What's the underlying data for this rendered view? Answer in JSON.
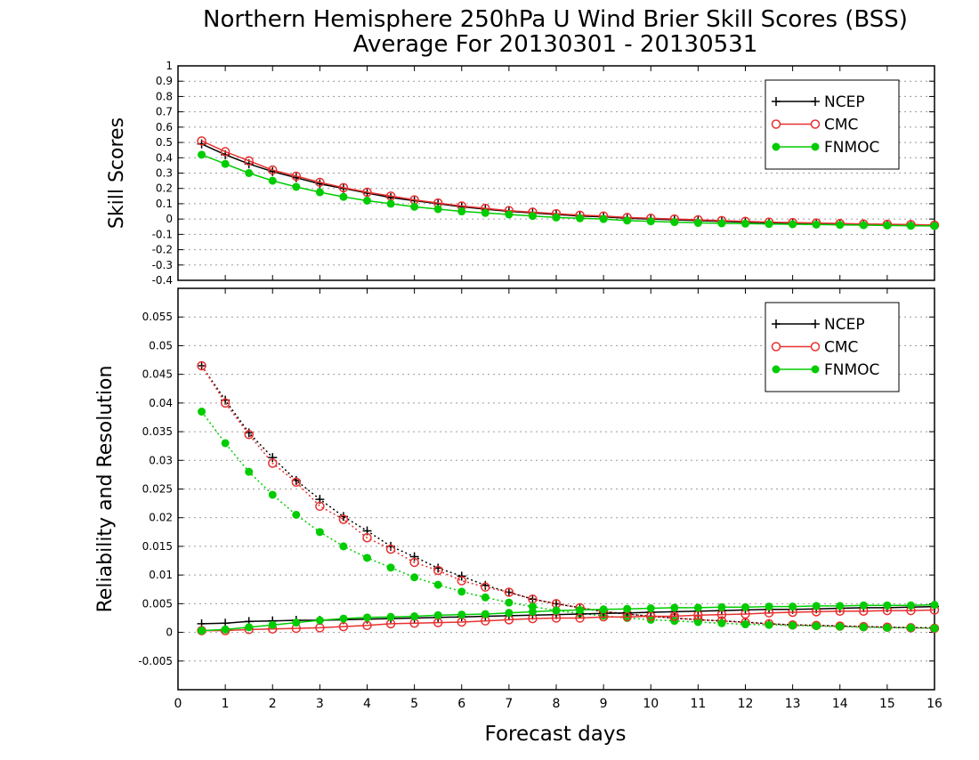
{
  "title": "Northern Hemisphere 250hPa U Wind Brier Skill Scores (BSS)",
  "subtitle": "Average For 20130301 - 20130531",
  "xlabel": "Forecast days",
  "colors": {
    "NCEP": "#000000",
    "CMC": "#e83030",
    "FNMOC": "#00cc00"
  },
  "chart_data": [
    {
      "type": "line",
      "panel": "top",
      "ylabel": "Skill Scores",
      "xlim": [
        0,
        16
      ],
      "ylim": [
        -0.4,
        1
      ],
      "x_ticks": [
        "0",
        "1",
        "2",
        "3",
        "4",
        "5",
        "6",
        "7",
        "8",
        "9",
        "10",
        "11",
        "12",
        "13",
        "14",
        "15",
        "16"
      ],
      "y_ticks": [
        "-0.4",
        "-0.3",
        "-0.2",
        "-0.1",
        "0",
        "0.1",
        "0.2",
        "0.3",
        "0.4",
        "0.5",
        "0.6",
        "0.7",
        "0.8",
        "0.9",
        "1"
      ],
      "grid": true,
      "legend": "top-right",
      "x": [
        0.5,
        1,
        1.5,
        2,
        2.5,
        3,
        3.5,
        4,
        4.5,
        5,
        5.5,
        6,
        6.5,
        7,
        7.5,
        8,
        8.5,
        9,
        9.5,
        10,
        10.5,
        11,
        11.5,
        12,
        12.5,
        13,
        13.5,
        14,
        14.5,
        15,
        15.5,
        16
      ],
      "series": [
        {
          "name": "NCEP",
          "marker": "plus",
          "style": "solid",
          "values": [
            0.49,
            0.42,
            0.36,
            0.31,
            0.27,
            0.23,
            0.2,
            0.17,
            0.14,
            0.12,
            0.1,
            0.08,
            0.065,
            0.05,
            0.04,
            0.03,
            0.02,
            0.015,
            0.005,
            0.0,
            -0.005,
            -0.01,
            -0.015,
            -0.02,
            -0.025,
            -0.028,
            -0.03,
            -0.032,
            -0.034,
            -0.036,
            -0.038,
            -0.04
          ]
        },
        {
          "name": "CMC",
          "marker": "open-circle",
          "style": "solid",
          "values": [
            0.51,
            0.44,
            0.38,
            0.32,
            0.28,
            0.24,
            0.205,
            0.175,
            0.15,
            0.125,
            0.105,
            0.085,
            0.07,
            0.055,
            0.045,
            0.035,
            0.025,
            0.02,
            0.01,
            0.005,
            0.0,
            -0.005,
            -0.01,
            -0.015,
            -0.02,
            -0.023,
            -0.026,
            -0.029,
            -0.032,
            -0.034,
            -0.036,
            -0.04
          ]
        },
        {
          "name": "FNMOC",
          "marker": "filled-circle",
          "style": "solid",
          "values": [
            0.42,
            0.36,
            0.3,
            0.25,
            0.21,
            0.175,
            0.145,
            0.12,
            0.1,
            0.08,
            0.065,
            0.05,
            0.04,
            0.03,
            0.02,
            0.01,
            0.005,
            0.0,
            -0.01,
            -0.015,
            -0.02,
            -0.025,
            -0.028,
            -0.03,
            -0.032,
            -0.034,
            -0.036,
            -0.038,
            -0.04,
            -0.042,
            -0.044,
            -0.045
          ]
        }
      ]
    },
    {
      "type": "line",
      "panel": "bottom",
      "ylabel": "Reliability and Resolution",
      "xlim": [
        0,
        16
      ],
      "ylim": [
        -0.01,
        0.06
      ],
      "x_ticks": [
        "0",
        "1",
        "2",
        "3",
        "4",
        "5",
        "6",
        "7",
        "8",
        "9",
        "10",
        "11",
        "12",
        "13",
        "14",
        "15",
        "16"
      ],
      "y_ticks": [
        "-0.005",
        "0",
        "0.005",
        "0.01",
        "0.015",
        "0.02",
        "0.025",
        "0.03",
        "0.035",
        "0.04",
        "0.045",
        "0.05",
        "0.055"
      ],
      "grid": true,
      "legend": "top-right",
      "x": [
        0.5,
        1,
        1.5,
        2,
        2.5,
        3,
        3.5,
        4,
        4.5,
        5,
        5.5,
        6,
        6.5,
        7,
        7.5,
        8,
        8.5,
        9,
        9.5,
        10,
        10.5,
        11,
        11.5,
        12,
        12.5,
        13,
        13.5,
        14,
        14.5,
        15,
        15.5,
        16
      ],
      "series": [
        {
          "name": "NCEP",
          "component": "resolution",
          "marker": "plus",
          "style": "dotted",
          "values": [
            0.0465,
            0.0405,
            0.0348,
            0.0305,
            0.0265,
            0.0232,
            0.0202,
            0.0177,
            0.015,
            0.0132,
            0.0112,
            0.0098,
            0.0082,
            0.007,
            0.0058,
            0.005,
            0.0043,
            0.0036,
            0.0032,
            0.0028,
            0.0025,
            0.0022,
            0.002,
            0.0018,
            0.0015,
            0.0013,
            0.0012,
            0.0011,
            0.001,
            0.0009,
            0.0008,
            0.0008
          ]
        },
        {
          "name": "CMC",
          "component": "resolution",
          "marker": "open-circle",
          "style": "dotted",
          "values": [
            0.0465,
            0.04,
            0.0345,
            0.0295,
            0.0262,
            0.022,
            0.0197,
            0.0165,
            0.0145,
            0.0122,
            0.0108,
            0.009,
            0.0079,
            0.007,
            0.0058,
            0.005,
            0.0043,
            0.0037,
            0.0032,
            0.0028,
            0.0025,
            0.0022,
            0.002,
            0.0017,
            0.0015,
            0.0013,
            0.0012,
            0.0011,
            0.001,
            0.0009,
            0.0008,
            0.0007
          ]
        },
        {
          "name": "FNMOC",
          "component": "resolution",
          "marker": "filled-circle",
          "style": "dotted",
          "values": [
            0.0385,
            0.033,
            0.028,
            0.024,
            0.0205,
            0.0175,
            0.015,
            0.013,
            0.0113,
            0.0096,
            0.0083,
            0.0071,
            0.0061,
            0.0052,
            0.0045,
            0.0038,
            0.0033,
            0.0029,
            0.0025,
            0.0022,
            0.002,
            0.0018,
            0.0016,
            0.0014,
            0.0013,
            0.0012,
            0.0011,
            0.001,
            0.0009,
            0.0008,
            0.0008,
            0.0007
          ]
        },
        {
          "name": "NCEP",
          "component": "reliability",
          "marker": "plus",
          "style": "solid",
          "values": [
            0.0015,
            0.0016,
            0.0019,
            0.002,
            0.0021,
            0.0021,
            0.0022,
            0.0023,
            0.0024,
            0.0025,
            0.0026,
            0.0027,
            0.0028,
            0.0029,
            0.003,
            0.0031,
            0.0032,
            0.0033,
            0.0034,
            0.0035,
            0.0036,
            0.0037,
            0.0038,
            0.0039,
            0.004,
            0.004,
            0.0041,
            0.0042,
            0.0043,
            0.0043,
            0.0044,
            0.0045
          ]
        },
        {
          "name": "CMC",
          "component": "reliability",
          "marker": "open-circle",
          "style": "solid",
          "values": [
            0.0003,
            0.0003,
            0.0005,
            0.0006,
            0.0007,
            0.0008,
            0.001,
            0.0012,
            0.0015,
            0.0016,
            0.0017,
            0.0018,
            0.002,
            0.0022,
            0.0024,
            0.0025,
            0.0025,
            0.0027,
            0.0027,
            0.0028,
            0.0028,
            0.003,
            0.0031,
            0.0032,
            0.0034,
            0.0035,
            0.0036,
            0.0037,
            0.0037,
            0.0038,
            0.0038,
            0.0039
          ]
        },
        {
          "name": "FNMOC",
          "component": "reliability",
          "marker": "filled-circle",
          "style": "solid",
          "values": [
            0.0003,
            0.0005,
            0.0009,
            0.0013,
            0.0017,
            0.0021,
            0.0024,
            0.0026,
            0.0027,
            0.0028,
            0.003,
            0.0031,
            0.0032,
            0.0034,
            0.0036,
            0.0038,
            0.0039,
            0.004,
            0.0041,
            0.0042,
            0.0043,
            0.0043,
            0.0044,
            0.0044,
            0.0045,
            0.0045,
            0.0046,
            0.0046,
            0.0047,
            0.0047,
            0.0047,
            0.0048
          ]
        }
      ]
    }
  ]
}
